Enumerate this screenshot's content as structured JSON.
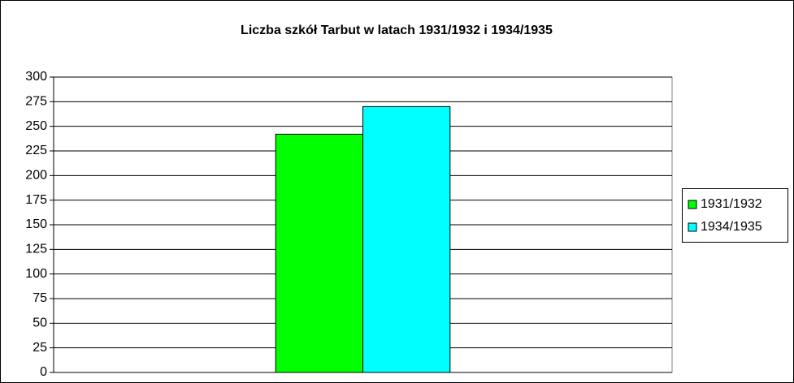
{
  "chart_data": {
    "type": "bar",
    "title": "Liczba szkół Tarbut w latach 1931/1932 i 1934/1935",
    "categories": [
      null
    ],
    "series": [
      {
        "name": "1931/1932",
        "color": "#00ff00",
        "values": [
          242
        ]
      },
      {
        "name": "1934/1935",
        "color": "#00ffff",
        "values": [
          270
        ]
      }
    ],
    "ylim": [
      0,
      300
    ],
    "yticks": [
      0,
      25,
      50,
      75,
      100,
      125,
      150,
      175,
      200,
      225,
      250,
      275,
      300
    ],
    "grid": true,
    "legend": "right"
  }
}
